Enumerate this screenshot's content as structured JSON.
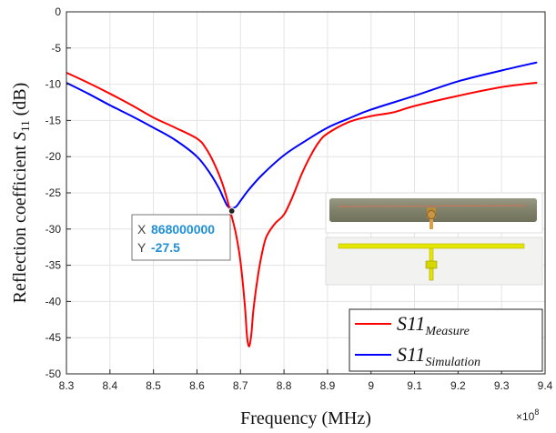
{
  "chart_data": {
    "type": "line",
    "xlabel": "Frequency (MHz)",
    "ylabel_prefix": "Reflection coefficient ",
    "ylabel_symbol": "S",
    "ylabel_subscript": "11",
    "ylabel_suffix": " (dB)",
    "x_exponent_base": "×10",
    "x_exponent_power": "8",
    "xlim": [
      8.3,
      9.4
    ],
    "ylim": [
      -50,
      0
    ],
    "x_ticks": [
      8.3,
      8.4,
      8.5,
      8.6,
      8.7,
      8.8,
      8.9,
      9,
      9.1,
      9.2,
      9.3,
      9.4
    ],
    "y_ticks": [
      0,
      -5,
      -10,
      -15,
      -20,
      -25,
      -30,
      -35,
      -40,
      -45,
      -50
    ],
    "grid": true,
    "legend_placement": "bottom-right",
    "series": [
      {
        "name": "S11",
        "name_subscript": "Measure",
        "color": "#ff0000",
        "x": [
          8.3,
          8.35,
          8.4,
          8.45,
          8.5,
          8.55,
          8.6,
          8.62,
          8.64,
          8.66,
          8.68,
          8.69,
          8.7,
          8.71,
          8.715,
          8.72,
          8.725,
          8.73,
          8.74,
          8.75,
          8.76,
          8.78,
          8.8,
          8.82,
          8.84,
          8.86,
          8.88,
          8.9,
          8.95,
          9.0,
          9.05,
          9.1,
          9.2,
          9.3,
          9.38
        ],
        "y": [
          -8.4,
          -9.8,
          -11.3,
          -12.9,
          -14.6,
          -16.0,
          -17.5,
          -18.8,
          -21.0,
          -24.0,
          -28.3,
          -30.8,
          -34.5,
          -40.5,
          -44.8,
          -46.2,
          -44.5,
          -41.0,
          -36.5,
          -33.2,
          -31.0,
          -29.2,
          -28.0,
          -25.5,
          -22.5,
          -20.0,
          -18.0,
          -16.8,
          -15.2,
          -14.4,
          -13.9,
          -13.0,
          -11.6,
          -10.4,
          -9.8
        ]
      },
      {
        "name": "S11",
        "name_subscript": "Simulation",
        "color": "#0000ff",
        "x": [
          8.3,
          8.35,
          8.4,
          8.45,
          8.5,
          8.55,
          8.6,
          8.63,
          8.65,
          8.66,
          8.67,
          8.68,
          8.69,
          8.7,
          8.72,
          8.75,
          8.8,
          8.85,
          8.9,
          8.95,
          9.0,
          9.1,
          9.2,
          9.3,
          9.38
        ],
        "y": [
          -9.8,
          -11.3,
          -12.9,
          -14.4,
          -16.0,
          -17.7,
          -20.0,
          -22.3,
          -24.3,
          -25.6,
          -26.8,
          -27.1,
          -26.9,
          -26.1,
          -24.5,
          -22.5,
          -19.8,
          -17.8,
          -16.0,
          -14.7,
          -13.5,
          -11.6,
          -9.6,
          -8.1,
          -7.0
        ]
      }
    ],
    "datatip": {
      "x_label": "X",
      "x_value": "868000000",
      "y_label": "Y",
      "y_value": "-27.5",
      "x": 8.68,
      "y": -27.5
    }
  },
  "inset": {
    "description": "antenna photo and layout",
    "board_color": "#8a8a70",
    "trace_color": "#e6e600"
  }
}
